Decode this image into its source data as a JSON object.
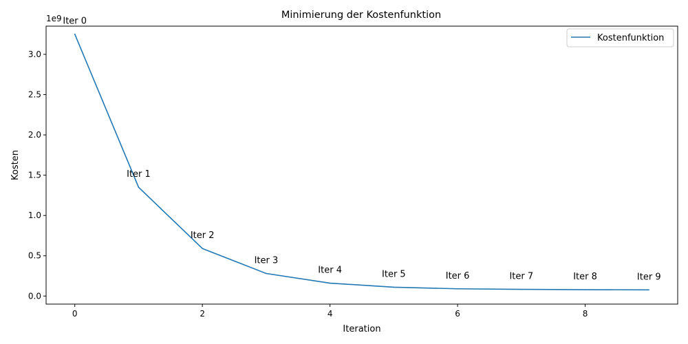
{
  "chart_data": {
    "type": "line",
    "title": "Minimierung der Kostenfunktion",
    "xlabel": "Iteration",
    "ylabel": "Kosten",
    "y_offset_label": "1e9",
    "xlim": [
      -0.45,
      9.45
    ],
    "ylim": [
      -0.1,
      3.35
    ],
    "x_ticks": [
      0,
      2,
      4,
      6,
      8
    ],
    "x_tick_labels": [
      "0",
      "2",
      "4",
      "6",
      "8"
    ],
    "y_ticks": [
      0.0,
      0.5,
      1.0,
      1.5,
      2.0,
      2.5,
      3.0
    ],
    "y_tick_labels": [
      "0.0",
      "0.5",
      "1.0",
      "1.5",
      "2.0",
      "2.5",
      "3.0"
    ],
    "grid": false,
    "legend_position": "top-right",
    "series": [
      {
        "name": "Kostenfunktion",
        "color": "#1f77b4",
        "x": [
          0,
          1,
          2,
          3,
          4,
          5,
          6,
          7,
          8,
          9
        ],
        "y": [
          3.25,
          1.35,
          0.59,
          0.28,
          0.16,
          0.11,
          0.09,
          0.083,
          0.079,
          0.077
        ]
      }
    ],
    "annotations": [
      {
        "x": 0,
        "y": 3.25,
        "text": "Iter 0"
      },
      {
        "x": 1,
        "y": 1.35,
        "text": "Iter 1"
      },
      {
        "x": 2,
        "y": 0.59,
        "text": "Iter 2"
      },
      {
        "x": 3,
        "y": 0.28,
        "text": "Iter 3"
      },
      {
        "x": 4,
        "y": 0.16,
        "text": "Iter 4"
      },
      {
        "x": 5,
        "y": 0.11,
        "text": "Iter 5"
      },
      {
        "x": 6,
        "y": 0.09,
        "text": "Iter 6"
      },
      {
        "x": 7,
        "y": 0.083,
        "text": "Iter 7"
      },
      {
        "x": 8,
        "y": 0.079,
        "text": "Iter 8"
      },
      {
        "x": 9,
        "y": 0.077,
        "text": "Iter 9"
      }
    ]
  }
}
